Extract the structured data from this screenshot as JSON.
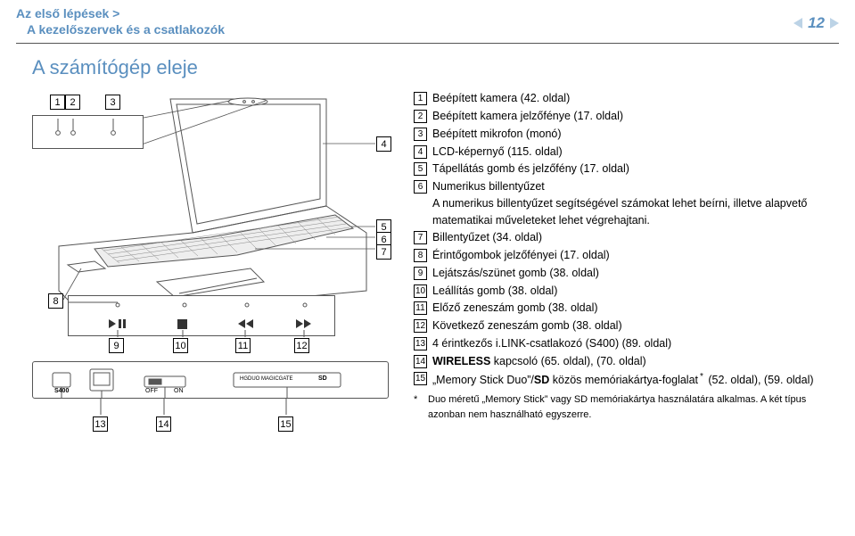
{
  "header": {
    "breadcrumb_top": "Az első lépések >",
    "breadcrumb_sub": "A kezelőszervek és a csatlakozók",
    "page_number": "12"
  },
  "title": "A számítógép eleje",
  "items": [
    {
      "n": "1",
      "text": "Beépített kamera (42. oldal)"
    },
    {
      "n": "2",
      "text": "Beépített kamera jelzőfénye (17. oldal)"
    },
    {
      "n": "3",
      "text": "Beépített mikrofon (monó)"
    },
    {
      "n": "4",
      "text": "LCD-képernyő (115. oldal)"
    },
    {
      "n": "5",
      "text": "Tápellátás gomb és jelzőfény (17. oldal)"
    },
    {
      "n": "6",
      "text": "Numerikus billentyűzet",
      "desc": "A numerikus billentyűzet segítségével számokat lehet beírni, illetve alapvető matematikai műveleteket lehet végrehajtani."
    },
    {
      "n": "7",
      "text": "Billentyűzet (34. oldal)"
    },
    {
      "n": "8",
      "text": "Érintőgombok jelzőfényei (17. oldal)"
    },
    {
      "n": "9",
      "text": "Lejátszás/szünet gomb (38. oldal)"
    },
    {
      "n": "10",
      "text": "Leállítás gomb (38. oldal)"
    },
    {
      "n": "11",
      "text": "Előző zeneszám gomb (38. oldal)"
    },
    {
      "n": "12",
      "text": "Következő zeneszám gomb (38. oldal)"
    },
    {
      "n": "13",
      "text": "4 érintkezős i.LINK-csatlakozó (S400) (89. oldal)"
    },
    {
      "n": "14",
      "html": "<b>WIRELESS</b> kapcsoló (65. oldal), (70. oldal)"
    },
    {
      "n": "15",
      "html": "„Memory Stick Duo”/<b>SD</b> közös memóriakártya-foglalat<span class='footnote-mark'>*</span> (52. oldal), (59. oldal)"
    }
  ],
  "footnote": "Duo méretű „Memory Stick” vagy SD memóriakártya használatára alkalmas. A két típus azonban nem használható egyszerre.",
  "diagram_labels": {
    "c1": "1",
    "c2": "2",
    "c3": "3",
    "c4": "4",
    "c5": "5",
    "c6": "6",
    "c7": "7",
    "c8": "8",
    "c9": "9",
    "c10": "10",
    "c11": "11",
    "c12": "12",
    "c13": "13",
    "c14": "14",
    "c15": "15"
  },
  "front_panel": {
    "s400": "S400",
    "off": "OFF",
    "on": "ON",
    "hgduo": "HGDUO MAGICGATE",
    "sd": "SD"
  },
  "colors": {
    "accent": "#5a8fbf",
    "line": "#555"
  }
}
